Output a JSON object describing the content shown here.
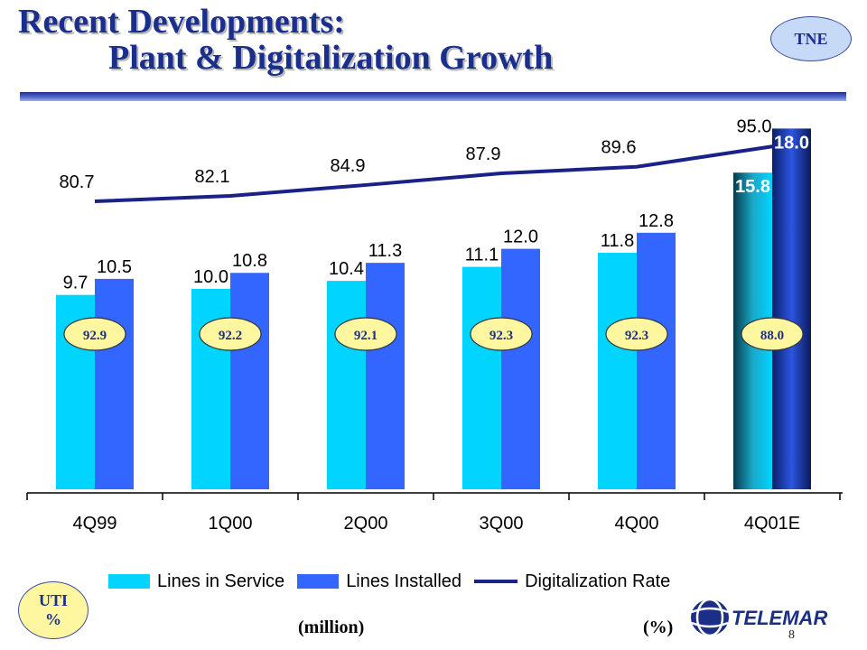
{
  "header": {
    "title_line1": "Recent Developments:",
    "title_line2": "Plant & Digitalization Growth",
    "badge": "TNE"
  },
  "uti": {
    "line1": "UTI",
    "line2": "%"
  },
  "units": {
    "left": "(million)",
    "right": "(%)"
  },
  "footer": {
    "page_number": "8",
    "logo_text": "TELEMAR"
  },
  "colors": {
    "lines_in_service": "#00d4ff",
    "lines_installed": "#3366ff",
    "digitalization_rate": "#1a2288",
    "uti_fill": "#fff7a0",
    "title": "#1a2e8c"
  },
  "chart_data": {
    "type": "bar",
    "categories": [
      "4Q99",
      "1Q00",
      "2Q00",
      "3Q00",
      "4Q00",
      "4Q01E"
    ],
    "series": [
      {
        "name": "Lines in Service",
        "values": [
          9.7,
          10.0,
          10.4,
          11.1,
          11.8,
          15.8
        ]
      },
      {
        "name": "Lines Installed",
        "values": [
          10.5,
          10.8,
          11.3,
          12.0,
          12.8,
          18.0
        ]
      },
      {
        "name": "Digitalization Rate",
        "type": "line",
        "values": [
          80.7,
          82.1,
          84.9,
          87.9,
          89.6,
          95.0
        ]
      }
    ],
    "uti_values": [
      92.9,
      92.2,
      92.1,
      92.3,
      92.3,
      88.0
    ],
    "value_labels": {
      "lines_in_service": [
        "9.7",
        "10.0",
        "10.4",
        "11.1",
        "11.8",
        "15.8"
      ],
      "lines_installed": [
        "10.5",
        "10.8",
        "11.3",
        "12.0",
        "12.8",
        "18.0"
      ],
      "digitalization_rate": [
        "80.7",
        "82.1",
        "84.9",
        "87.9",
        "89.6",
        "95.0"
      ],
      "uti": [
        "92.9",
        "92.2",
        "92.1",
        "92.3",
        "92.3",
        "88.0"
      ]
    },
    "legend": [
      "Lines in Service",
      "Lines Installed",
      "Digitalization Rate"
    ],
    "legend_position": "bottom",
    "grid": false,
    "ylim_bars": [
      0,
      18.5
    ]
  }
}
